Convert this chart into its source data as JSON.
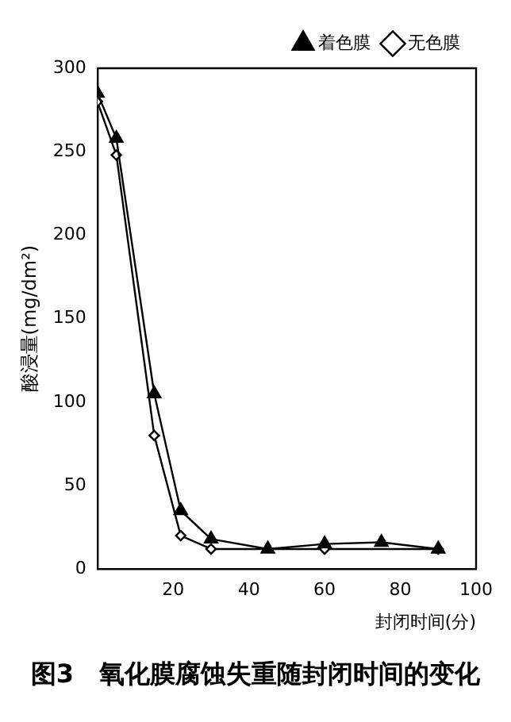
{
  "chart_data": {
    "type": "line",
    "title": "图3　氧化膜腐蚀失重随封闭时间的变化",
    "xlabel": "封闭时间(分)",
    "ylabel": "酸浸量(mg/dm²)",
    "xlim": [
      0,
      100
    ],
    "xticks": [
      20,
      40,
      60,
      80,
      100
    ],
    "ylim": [
      0,
      300
    ],
    "yticks": [
      0,
      50,
      100,
      150,
      200,
      250,
      300
    ],
    "grid": false,
    "legend": "top right",
    "series": [
      {
        "name": "着色膜",
        "color": "#000000",
        "marker": "triangle",
        "x": [
          0,
          5,
          15,
          22,
          30,
          45,
          60,
          75,
          90
        ],
        "values": [
          285,
          258,
          105,
          35,
          18,
          12,
          15,
          16,
          12
        ]
      },
      {
        "name": "无色膜",
        "color": "#000000",
        "marker": "diamond",
        "x": [
          0,
          5,
          15,
          22,
          30,
          60,
          90
        ],
        "values": [
          280,
          248,
          80,
          20,
          12,
          12,
          12
        ]
      }
    ]
  }
}
